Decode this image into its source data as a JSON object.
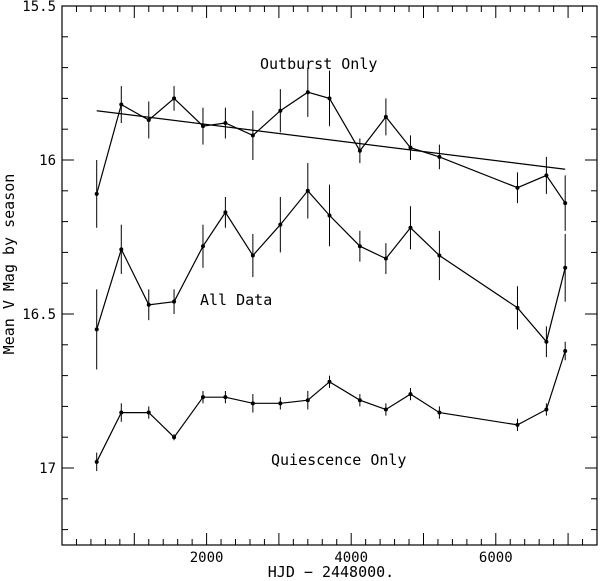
{
  "chart_data": {
    "type": "line",
    "title": "",
    "xlabel": "HJD − 2448000.",
    "ylabel": "Mean V Mag  by season",
    "xlim": [
      0,
      7400
    ],
    "ylim": [
      17.25,
      15.5
    ],
    "y_inverted": true,
    "grid": false,
    "x_ticks": [
      2000,
      4000,
      6000
    ],
    "x_tick_labels": [
      "2000",
      "4000",
      "6000"
    ],
    "y_ticks": [
      15.5,
      16,
      16.5,
      17
    ],
    "y_tick_labels": [
      "15.5",
      "16",
      "16.5",
      "17"
    ],
    "annotations": [
      "Outburst Only",
      "All Data",
      "Quiescence Only"
    ],
    "series": [
      {
        "x": [
          480,
          820,
          1200,
          1550,
          1950,
          2260,
          2640,
          3020,
          3400,
          3700,
          4120,
          4480,
          4820,
          5220,
          6300,
          6700,
          6960
        ],
        "y": [
          16.11,
          15.82,
          15.87,
          15.8,
          15.89,
          15.88,
          15.92,
          15.84,
          15.78,
          15.8,
          15.97,
          15.86,
          15.96,
          15.99,
          16.09,
          16.05,
          16.14
        ],
        "err": [
          0.11,
          0.06,
          0.06,
          0.04,
          0.06,
          0.05,
          0.08,
          0.07,
          0.08,
          0.09,
          0.04,
          0.06,
          0.04,
          0.04,
          0.05,
          0.06,
          0.09
        ]
      },
      {
        "x": [
          480,
          820,
          1200,
          1550,
          1950,
          2260,
          2640,
          3020,
          3400,
          3700,
          4120,
          4480,
          4820,
          5220,
          6300,
          6700,
          6960
        ],
        "y": [
          16.55,
          16.29,
          16.47,
          16.46,
          16.28,
          16.17,
          16.31,
          16.21,
          16.1,
          16.18,
          16.28,
          16.32,
          16.22,
          16.31,
          16.48,
          16.59,
          16.35
        ],
        "err": [
          0.13,
          0.08,
          0.05,
          0.04,
          0.07,
          0.05,
          0.07,
          0.09,
          0.09,
          0.1,
          0.05,
          0.05,
          0.07,
          0.08,
          0.07,
          0.05,
          0.11
        ]
      },
      {
        "x": [
          480,
          820,
          1200,
          1550,
          1950,
          2260,
          2640,
          3020,
          3400,
          3700,
          4120,
          4480,
          4820,
          5220,
          6300,
          6700,
          6960
        ],
        "y": [
          16.98,
          16.82,
          16.82,
          16.9,
          16.77,
          16.77,
          16.79,
          16.79,
          16.78,
          16.72,
          16.78,
          16.81,
          16.76,
          16.82,
          16.86,
          16.81,
          16.62
        ],
        "err": [
          0.03,
          0.03,
          0.02,
          0.01,
          0.02,
          0.02,
          0.03,
          0.02,
          0.03,
          0.02,
          0.02,
          0.02,
          0.02,
          0.02,
          0.02,
          0.02,
          0.03
        ]
      }
    ],
    "fit_line": {
      "x": [
        480,
        6960
      ],
      "y": [
        15.84,
        16.03
      ]
    }
  }
}
